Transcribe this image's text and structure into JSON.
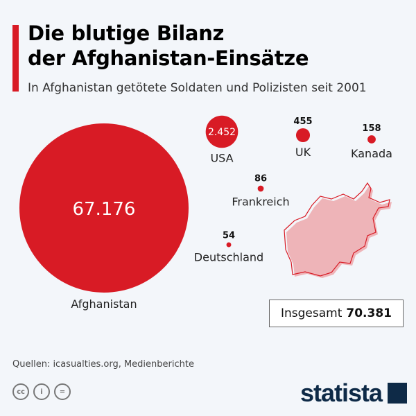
{
  "header": {
    "title_line1": "Die blutige Bilanz",
    "title_line2": "der Afghanistan-Einsätze",
    "subtitle": "In Afghanistan getötete Soldaten und Polizisten seit 2001"
  },
  "chart_data": {
    "type": "bubble",
    "unit": "getötete Soldaten und Polizisten",
    "items": [
      {
        "label": "Afghanistan",
        "value": 67176,
        "value_label": "67.176"
      },
      {
        "label": "USA",
        "value": 2452,
        "value_label": "2.452"
      },
      {
        "label": "UK",
        "value": 455,
        "value_label": "455"
      },
      {
        "label": "Kanada",
        "value": 158,
        "value_label": "158"
      },
      {
        "label": "Frankreich",
        "value": 86,
        "value_label": "86"
      },
      {
        "label": "Deutschland",
        "value": 54,
        "value_label": "54"
      }
    ],
    "colors": {
      "bubble": "#d81b25",
      "map_fill": "#eeb4b8"
    }
  },
  "total": {
    "label": "Insgesamt",
    "value": "70.381"
  },
  "footer": {
    "source": "Quellen: icasualties.org, Medienberichte",
    "cc_icons": [
      "cc-icon",
      "by-icon",
      "nd-icon"
    ],
    "logo": "statista"
  }
}
